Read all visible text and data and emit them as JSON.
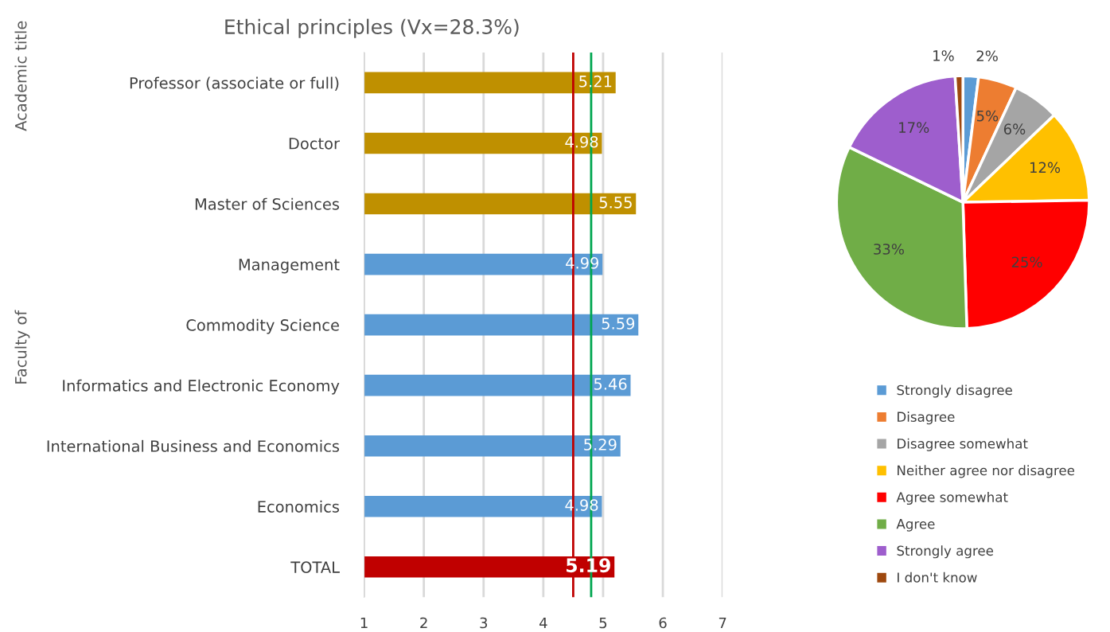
{
  "chart_data": [
    {
      "type": "bar",
      "title": "Ethical principles (Vx=28.3%)",
      "orientation": "horizontal",
      "categories": [
        "Professor (associate or full)",
        "Doctor",
        "Master of Sciences",
        "Management",
        "Commodity Science",
        "Informatics and Electronic Economy",
        "International Business and Economics",
        "Economics",
        "TOTAL"
      ],
      "values": [
        5.21,
        4.98,
        5.55,
        4.99,
        5.59,
        5.46,
        5.29,
        4.98,
        5.19
      ],
      "colors": [
        "#bf9000",
        "#bf9000",
        "#bf9000",
        "#5b9bd5",
        "#5b9bd5",
        "#5b9bd5",
        "#5b9bd5",
        "#5b9bd5",
        "#c00000"
      ],
      "data_labels": true,
      "xlim": [
        1,
        7
      ],
      "xticks": [
        1,
        2,
        3,
        4,
        5,
        6,
        7
      ],
      "grid": "x",
      "ref_lines": [
        {
          "axis": "x",
          "value": 4.5,
          "color": "#c00000"
        },
        {
          "axis": "x",
          "value": 4.8,
          "color": "#00a650"
        }
      ],
      "annotations": [
        "Academic title",
        "Faculty of"
      ]
    },
    {
      "type": "pie",
      "categories": [
        "Strongly disagree",
        "Disagree",
        "Disagree somewhat",
        "Neither agree nor disagree",
        "Agree somewhat",
        "Agree",
        "Strongly agree",
        "I don't know"
      ],
      "values": [
        2,
        5,
        6,
        12,
        25,
        33,
        17,
        1
      ],
      "value_labels": [
        "2%",
        "5%",
        "6%",
        "12%",
        "25%",
        "33%",
        "17%",
        "1%"
      ],
      "colors": [
        "#5b9bd5",
        "#ed7d31",
        "#a5a5a5",
        "#ffc000",
        "#ff0000",
        "#70ad47",
        "#9e5ecd",
        "#9e480e"
      ],
      "legend": "bottom"
    }
  ]
}
